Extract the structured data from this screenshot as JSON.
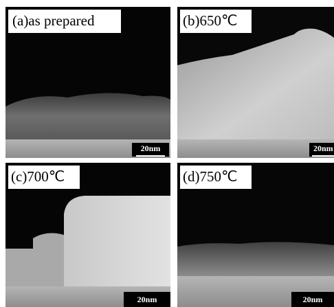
{
  "panels": [
    {
      "label": "(a)as prepared",
      "scale_bar": "20nm"
    },
    {
      "label": "(b)650℃",
      "scale_bar": "20nm"
    },
    {
      "label": "(c)700℃",
      "scale_bar": "20nm"
    },
    {
      "label": "(d)750℃",
      "scale_bar": "20nm"
    }
  ]
}
